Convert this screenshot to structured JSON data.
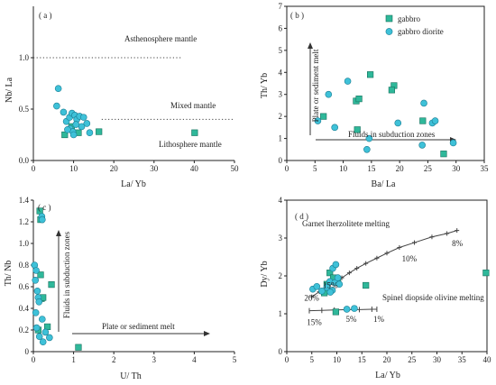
{
  "colors": {
    "gabbro": "#2fb89a",
    "gabbro_diorite": "#3ec1d8",
    "axis": "#222222"
  },
  "legend": {
    "gabbro": "gabbro",
    "gabbro_diorite": "gabbro diorite"
  },
  "chart_data": [
    {
      "id": "a",
      "type": "scatter",
      "panel": "( a )",
      "xlabel": "La/ Yb",
      "ylabel": "Nb/ La",
      "xlim": [
        0,
        50
      ],
      "ylim": [
        0,
        1.5
      ],
      "xticks": [
        "0",
        "10",
        "20",
        "30",
        "40",
        "50"
      ],
      "yticks": [
        "0.0",
        "0.5",
        "1.0"
      ],
      "ytick_values": [
        0,
        0.5,
        1.0
      ],
      "annotations": [
        "Asthenosphere mantle",
        "Mixed mantle",
        "Lithosphere mantle"
      ],
      "reference_lines": [
        {
          "style": "dotted",
          "x": [
            0,
            37
          ],
          "y": [
            1.0,
            1.0
          ]
        },
        {
          "style": "dotted",
          "x": [
            17,
            50
          ],
          "y": [
            0.4,
            0.4
          ]
        }
      ],
      "series": [
        {
          "name": "gabbro",
          "marker": "square",
          "points": [
            [
              7.8,
              0.25
            ],
            [
              9.5,
              0.33
            ],
            [
              11.2,
              0.27
            ],
            [
              16.3,
              0.28
            ],
            [
              40.1,
              0.27
            ]
          ]
        },
        {
          "name": "gabbro diorite",
          "marker": "circle",
          "points": [
            [
              6.2,
              0.7
            ],
            [
              5.8,
              0.53
            ],
            [
              7.5,
              0.47
            ],
            [
              8.2,
              0.38
            ],
            [
              9.0,
              0.42
            ],
            [
              9.6,
              0.46
            ],
            [
              10.3,
              0.44
            ],
            [
              10.8,
              0.4
            ],
            [
              11.5,
              0.43
            ],
            [
              12.5,
              0.42
            ],
            [
              13.3,
              0.36
            ],
            [
              9.1,
              0.31
            ],
            [
              9.8,
              0.28
            ],
            [
              8.5,
              0.3
            ],
            [
              10.0,
              0.25
            ],
            [
              14.0,
              0.27
            ],
            [
              12.0,
              0.33
            ],
            [
              10.6,
              0.35
            ]
          ]
        }
      ]
    },
    {
      "id": "b",
      "type": "scatter",
      "panel": "( b )",
      "xlabel": "Ba/ La",
      "ylabel": "Th/ Yb",
      "xlim": [
        0,
        35
      ],
      "ylim": [
        0,
        7
      ],
      "xticks": [
        "0",
        "5",
        "10",
        "15",
        "20",
        "25",
        "30",
        "35"
      ],
      "yticks": [
        "0",
        "1",
        "2",
        "3",
        "4",
        "5",
        "6",
        "7"
      ],
      "annotations": [
        "Plate or sediment melt",
        "Fluids in subduction zones"
      ],
      "series": [
        {
          "name": "gabbro",
          "marker": "square",
          "points": [
            [
              6.5,
              2.0
            ],
            [
              12.3,
              2.7
            ],
            [
              12.8,
              2.8
            ],
            [
              14.8,
              3.9
            ],
            [
              19.0,
              3.4
            ],
            [
              18.6,
              3.2
            ],
            [
              24.1,
              1.8
            ],
            [
              12.5,
              1.4
            ],
            [
              27.8,
              0.3
            ]
          ]
        },
        {
          "name": "gabbro diorite",
          "marker": "circle",
          "points": [
            [
              5.5,
              1.8
            ],
            [
              7.4,
              3.0
            ],
            [
              10.8,
              3.6
            ],
            [
              8.5,
              1.5
            ],
            [
              14.2,
              0.5
            ],
            [
              14.6,
              1.0
            ],
            [
              19.7,
              1.7
            ],
            [
              24.3,
              2.6
            ],
            [
              25.8,
              1.7
            ],
            [
              26.3,
              1.8
            ],
            [
              29.5,
              0.8
            ],
            [
              24.0,
              0.7
            ]
          ]
        }
      ]
    },
    {
      "id": "c",
      "type": "scatter",
      "panel": "( c )",
      "xlabel": "U/ Th",
      "ylabel": "Th/ Nb",
      "xlim": [
        0,
        5
      ],
      "ylim": [
        0,
        1.4
      ],
      "xticks": [
        "0",
        "1",
        "2",
        "3",
        "4",
        "5"
      ],
      "yticks": [
        "0",
        "0.2",
        "0.4",
        "0.6",
        "0.8",
        "1.0",
        "1.2",
        "1.4"
      ],
      "annotations": [
        "Fluids in subduction zones",
        "Plate or sediment melt"
      ],
      "series": [
        {
          "name": "gabbro",
          "marker": "square",
          "points": [
            [
              0.16,
              1.3
            ],
            [
              0.18,
              1.22
            ],
            [
              0.2,
              0.49
            ],
            [
              0.24,
              0.5
            ],
            [
              0.18,
              0.71
            ],
            [
              0.45,
              0.62
            ],
            [
              0.12,
              0.2
            ],
            [
              0.35,
              0.23
            ],
            [
              1.12,
              0.04
            ]
          ]
        },
        {
          "name": "gabbro diorite",
          "marker": "circle",
          "points": [
            [
              0.21,
              1.25
            ],
            [
              0.22,
              1.22
            ],
            [
              0.03,
              0.8
            ],
            [
              0.07,
              0.75
            ],
            [
              0.05,
              0.66
            ],
            [
              0.1,
              0.56
            ],
            [
              0.12,
              0.5
            ],
            [
              0.14,
              0.46
            ],
            [
              0.06,
              0.36
            ],
            [
              0.22,
              0.3
            ],
            [
              0.15,
              0.14
            ],
            [
              0.24,
              0.09
            ],
            [
              0.4,
              0.13
            ],
            [
              0.3,
              0.18
            ],
            [
              0.08,
              0.22
            ]
          ]
        }
      ]
    },
    {
      "id": "d",
      "type": "scatter",
      "panel": "( d )",
      "xlabel": "La/ Yb",
      "ylabel": "Dy/ Yb",
      "xlim": [
        0,
        40
      ],
      "ylim": [
        0,
        4
      ],
      "xticks": [
        "0",
        "5",
        "10",
        "15",
        "20",
        "25",
        "30",
        "35",
        "40"
      ],
      "yticks": [
        "0",
        "1",
        "2",
        "3",
        "4"
      ],
      "annotations": [
        "Garnet lherzolitete melting",
        "Spinel diopside olivine melting"
      ],
      "curve_labels": [
        {
          "text": "20%",
          "x": 3.5,
          "y": 1.35
        },
        {
          "text": "15%",
          "x": 7.2,
          "y": 1.68
        },
        {
          "text": "10%",
          "x": 23.0,
          "y": 2.38
        },
        {
          "text": "8%",
          "x": 33.0,
          "y": 2.78
        }
      ],
      "line_labels": [
        {
          "text": "15%",
          "x": 4.0,
          "y": 0.7
        },
        {
          "text": "5%",
          "x": 11.8,
          "y": 0.78
        },
        {
          "text": "1%",
          "x": 17.3,
          "y": 0.78
        }
      ],
      "garnet_curve": [
        [
          5.0,
          1.45
        ],
        [
          6.5,
          1.58
        ],
        [
          8.0,
          1.7
        ],
        [
          9.5,
          1.83
        ],
        [
          11.0,
          1.95
        ],
        [
          12.5,
          2.08
        ],
        [
          14.0,
          2.2
        ],
        [
          15.8,
          2.33
        ],
        [
          18.0,
          2.47
        ],
        [
          20.0,
          2.6
        ],
        [
          22.5,
          2.75
        ],
        [
          25.5,
          2.88
        ],
        [
          29.0,
          3.03
        ],
        [
          32.0,
          3.12
        ],
        [
          34.0,
          3.2
        ]
      ],
      "spinel_line": [
        [
          4.5,
          1.08
        ],
        [
          7.0,
          1.09
        ],
        [
          9.5,
          1.1
        ],
        [
          12.0,
          1.11
        ],
        [
          14.5,
          1.11
        ],
        [
          17.0,
          1.12
        ],
        [
          18.0,
          1.12
        ]
      ],
      "series": [
        {
          "name": "gabbro",
          "marker": "square",
          "points": [
            [
              7.5,
              1.55
            ],
            [
              8.0,
              1.78
            ],
            [
              8.6,
              2.08
            ],
            [
              9.3,
              1.95
            ],
            [
              9.8,
              1.05
            ],
            [
              10.2,
              1.9
            ],
            [
              15.8,
              1.75
            ],
            [
              39.8,
              2.08
            ]
          ]
        },
        {
          "name": "gabbro diorite",
          "marker": "circle",
          "points": [
            [
              5.2,
              1.65
            ],
            [
              6.0,
              1.72
            ],
            [
              7.0,
              1.6
            ],
            [
              8.0,
              1.7
            ],
            [
              8.6,
              1.85
            ],
            [
              9.2,
              2.2
            ],
            [
              9.8,
              2.3
            ],
            [
              9.6,
              1.82
            ],
            [
              10.2,
              1.95
            ],
            [
              10.5,
              1.78
            ],
            [
              9.1,
              1.62
            ],
            [
              8.7,
              1.57
            ],
            [
              12.0,
              1.12
            ],
            [
              13.5,
              1.14
            ]
          ]
        }
      ]
    }
  ]
}
